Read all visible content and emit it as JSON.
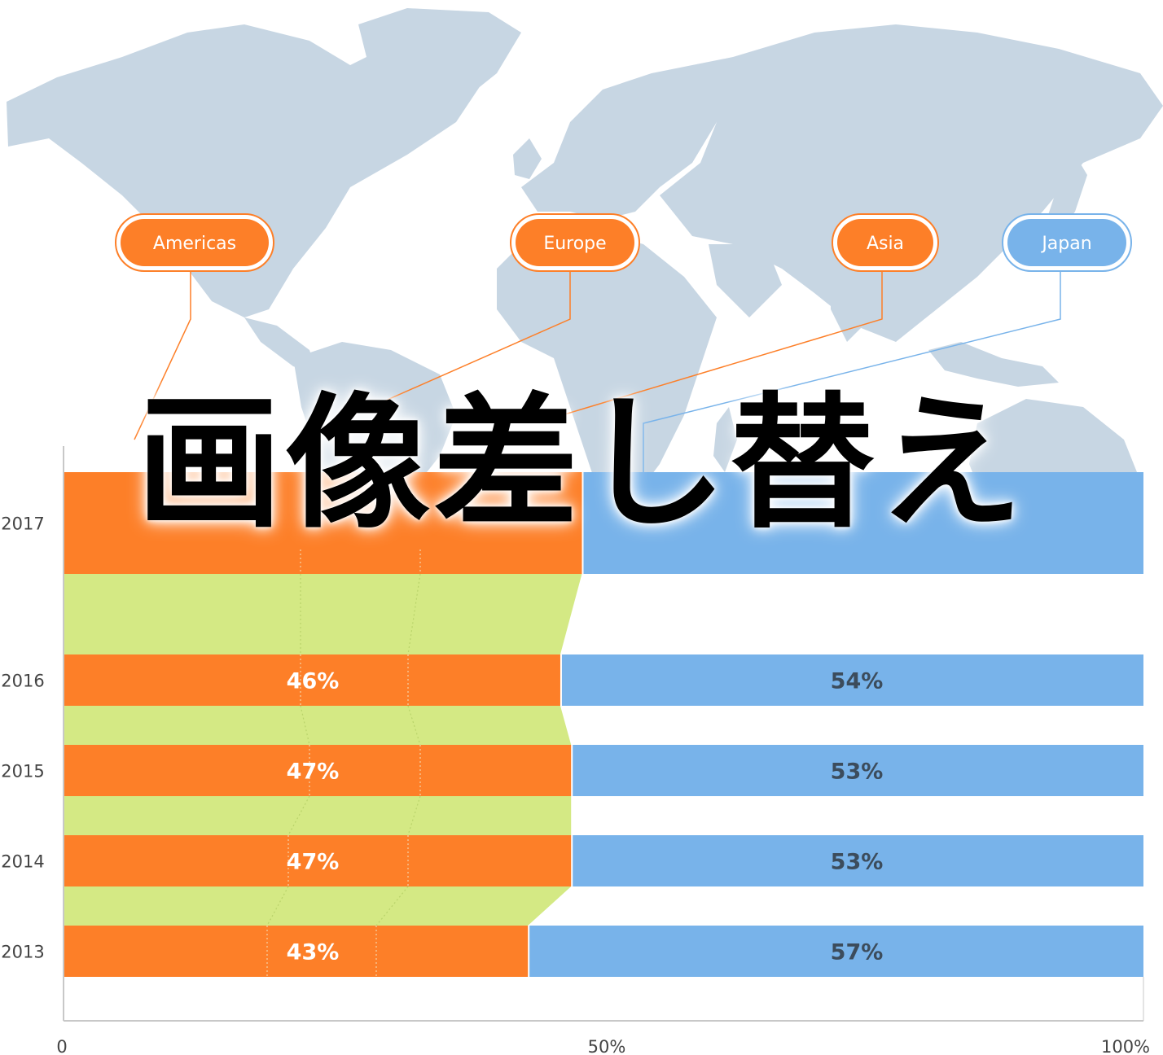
{
  "overlay_text": "画像差し替え",
  "colors": {
    "orange": "#fd7f28",
    "blue": "#78b3ea",
    "green": "#d4e984",
    "map": "#c7d6e3",
    "japan_outline": "#78b3ea"
  },
  "map_callouts": [
    {
      "label": "Americas",
      "color": "#fd7f28"
    },
    {
      "label": "Europe",
      "color": "#fd7f28"
    },
    {
      "label": "Asia",
      "color": "#fd7f28"
    },
    {
      "label": "Japan",
      "color": "#78b3ea"
    }
  ],
  "chart_data": {
    "type": "bar",
    "orientation": "horizontal",
    "stacked": true,
    "categories": [
      "2017",
      "2016",
      "2015",
      "2014",
      "2013"
    ],
    "series": [
      {
        "color": "#fd7f28",
        "values": [
          48,
          46,
          47,
          47,
          43
        ],
        "labels": [
          "",
          "46%",
          "47%",
          "47%",
          "43%"
        ]
      },
      {
        "color": "#78b3ea",
        "values": [
          52,
          54,
          53,
          53,
          57
        ],
        "labels": [
          "",
          "54%",
          "53%",
          "53%",
          "57%"
        ]
      }
    ],
    "xlim": [
      0,
      100
    ],
    "xticks": [
      "0",
      "50%",
      "100%"
    ],
    "grid": false
  }
}
